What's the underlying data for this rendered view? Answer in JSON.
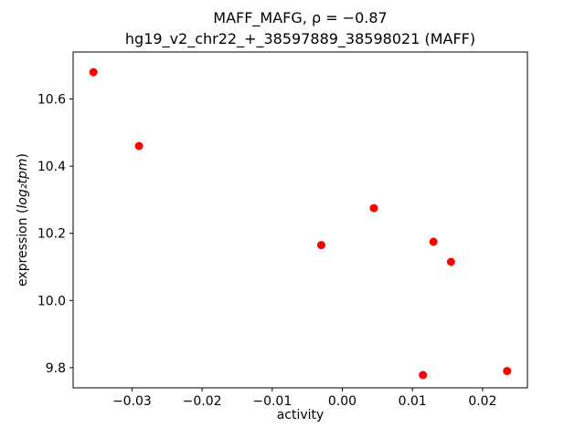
{
  "chart_data": {
    "type": "scatter",
    "title": "MAFF_MAFG, ρ = −0.87",
    "subtitle": "hg19_v2_chr22_+_38597889_38598021 (MAFF)",
    "rho": -0.87,
    "xlabel": "activity",
    "ylabel": "expression (log₂tpm)",
    "ylabel_parts": {
      "prefix": "expression (",
      "math": "log₂tpm",
      "suffix": ")"
    },
    "marker_color": "#ff0000",
    "grid": false,
    "legend_position": "none",
    "xlim": [
      -0.0384,
      0.0264
    ],
    "ylim": [
      9.74,
      10.74
    ],
    "xticks": [
      -0.03,
      -0.02,
      -0.01,
      0.0,
      0.01,
      0.02
    ],
    "xtick_labels": [
      "−0.03",
      "−0.02",
      "−0.01",
      "0.00",
      "0.01",
      "0.02"
    ],
    "yticks": [
      9.8,
      10.0,
      10.2,
      10.4,
      10.6
    ],
    "ytick_labels": [
      "9.8",
      "10.0",
      "10.2",
      "10.4",
      "10.6"
    ],
    "series_name": "MAFF",
    "points": [
      [
        -0.0355,
        10.68
      ],
      [
        -0.029,
        10.46
      ],
      [
        0.0045,
        10.275
      ],
      [
        -0.003,
        10.165
      ],
      [
        0.013,
        10.175
      ],
      [
        0.0155,
        10.115
      ],
      [
        0.0115,
        9.778
      ],
      [
        0.0235,
        9.79
      ]
    ]
  }
}
